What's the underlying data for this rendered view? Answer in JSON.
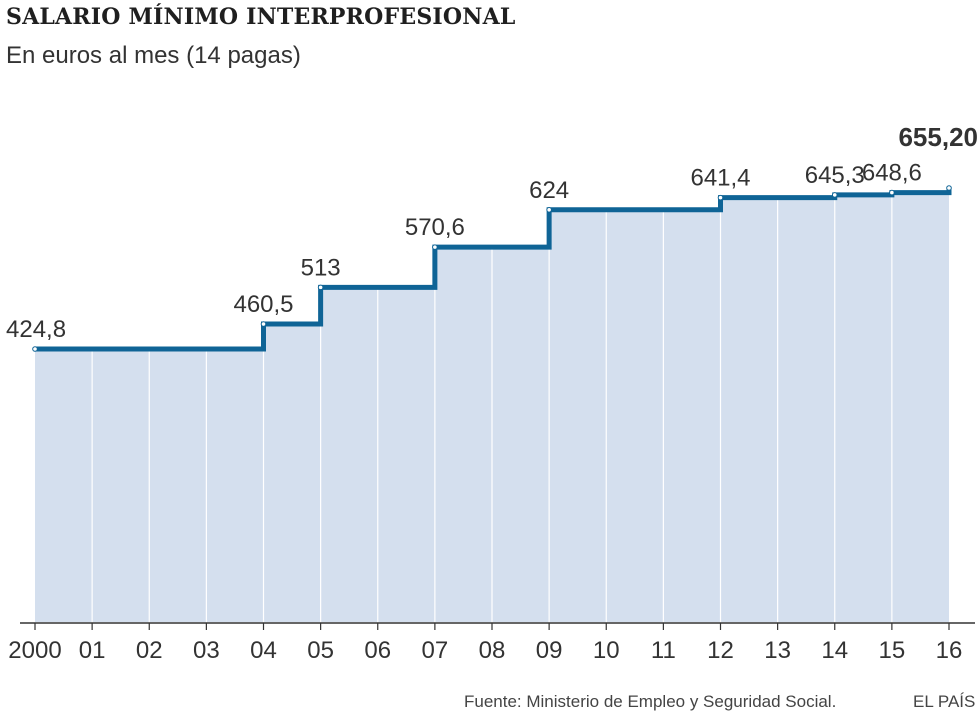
{
  "header": {
    "title": "Salario mínimo interprofesional",
    "subtitle": "En euros al mes (14 pagas)"
  },
  "footer": {
    "source": "Fuente: Ministerio de Empleo y Seguridad Social.",
    "brand": "EL PAÍS"
  },
  "colors": {
    "line": "#0f6496",
    "area": "#d4dfee",
    "grid": "#ffffff",
    "axis": "#333333"
  },
  "chart_data": {
    "type": "area",
    "step": true,
    "title": "Salario mínimo interprofesional",
    "subtitle": "En euros al mes (14 pagas)",
    "ylabel": "",
    "xlabel": "",
    "x": [
      2000,
      2001,
      2002,
      2003,
      2004,
      2005,
      2006,
      2007,
      2008,
      2009,
      2010,
      2011,
      2012,
      2013,
      2014,
      2015,
      2016
    ],
    "tick_labels": [
      "2000",
      "01",
      "02",
      "03",
      "04",
      "05",
      "06",
      "07",
      "08",
      "09",
      "10",
      "11",
      "12",
      "13",
      "14",
      "15",
      "16"
    ],
    "series": [
      {
        "steps": [
          {
            "x": 2000,
            "value": 424.8,
            "label": "424,8"
          },
          {
            "x": 2004,
            "value": 460.5,
            "label": "460,5"
          },
          {
            "x": 2005,
            "value": 513,
            "label": "513"
          },
          {
            "x": 2007,
            "value": 570.6,
            "label": "570,6"
          },
          {
            "x": 2009,
            "value": 624,
            "label": "624"
          },
          {
            "x": 2012,
            "value": 641.4,
            "label": "641,4"
          },
          {
            "x": 2014,
            "value": 645.3,
            "label": "645,3"
          },
          {
            "x": 2015,
            "value": 648.6,
            "label": "648,6"
          },
          {
            "x": 2016,
            "value": 655.2,
            "label": "655,20"
          }
        ]
      }
    ],
    "ylim": [
      0,
      660
    ],
    "grid": "vertical",
    "legend": "none"
  }
}
